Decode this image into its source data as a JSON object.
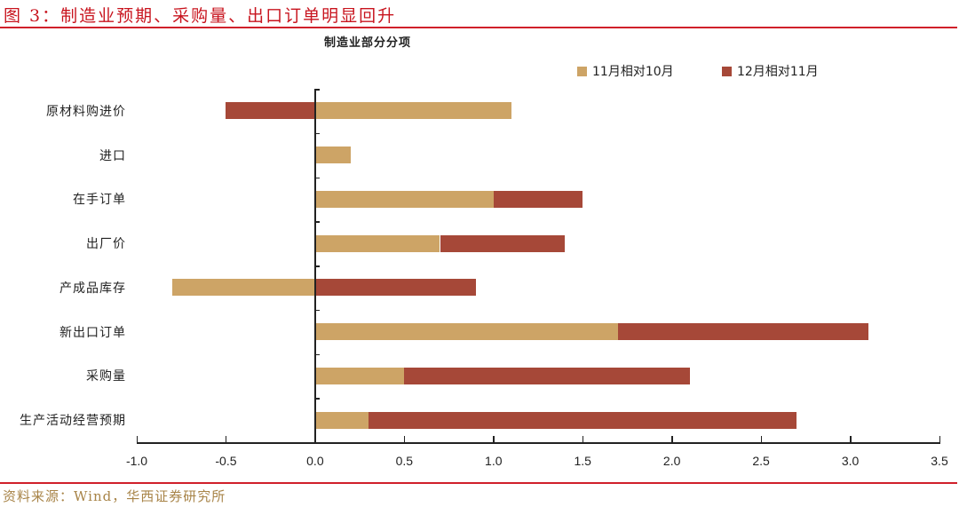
{
  "figure": {
    "title": "图 3：制造业预期、采购量、出口订单明显回升",
    "source": "资料来源：Wind，华西证券研究所"
  },
  "colors": {
    "series1": "#cda466",
    "series2": "#a64838",
    "rule": "#d0202a"
  },
  "chart_data": {
    "type": "bar",
    "orientation": "horizontal",
    "stacked": true,
    "title": "制造业部分分项",
    "xlabel": "",
    "ylabel": "",
    "xlim": [
      -1.0,
      3.5
    ],
    "xticks": [
      "-1.0",
      "-0.5",
      "0.0",
      "0.5",
      "1.0",
      "1.5",
      "2.0",
      "2.5",
      "3.0",
      "3.5"
    ],
    "grid": false,
    "legend_position": "top-right",
    "categories": [
      "原材料购进价",
      "进口",
      "在手订单",
      "出厂价",
      "产成品库存",
      "新出口订单",
      "采购量",
      "生产活动经营预期"
    ],
    "series": [
      {
        "name": "11月相对10月",
        "color": "#cda466",
        "values": [
          1.1,
          0.2,
          1.0,
          0.7,
          -0.8,
          1.7,
          0.5,
          0.3
        ]
      },
      {
        "name": "12月相对11月",
        "color": "#a64838",
        "values": [
          -0.5,
          0.0,
          0.5,
          0.7,
          0.9,
          1.4,
          1.6,
          2.4
        ]
      }
    ]
  }
}
